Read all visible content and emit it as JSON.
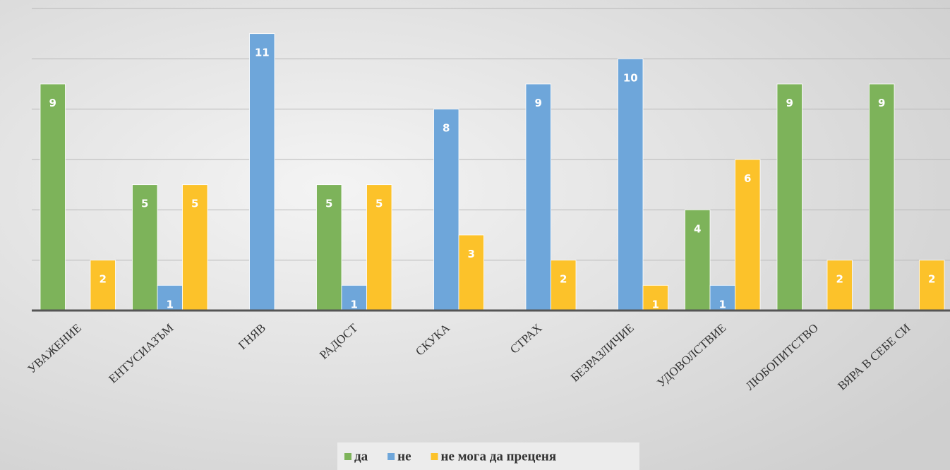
{
  "chart_data": {
    "type": "bar",
    "categories": [
      "УВАЖЕНИЕ",
      "ЕНТУСИАЗЪМ",
      "ГНЯВ",
      "РАДОСТ",
      "СКУКА",
      "СТРАХ",
      "БЕЗРАЗЛИЧИЕ",
      "УДОВОЛСТВИЕ",
      "ЛЮБОПИТСТВО",
      "ВЯРА В СЕБЕ СИ"
    ],
    "series": [
      {
        "name": "да",
        "color": "#7db35a",
        "values": [
          9,
          5,
          0,
          5,
          0,
          0,
          0,
          4,
          9,
          9
        ]
      },
      {
        "name": "не",
        "color": "#6ea6da",
        "values": [
          0,
          1,
          11,
          1,
          8,
          9,
          10,
          1,
          0,
          0
        ]
      },
      {
        "name": "не мога да преценя",
        "color": "#fcc22a",
        "values": [
          2,
          5,
          0,
          5,
          3,
          2,
          1,
          6,
          2,
          2
        ]
      }
    ],
    "ylim": [
      0,
      12
    ],
    "yticks": [
      0,
      2,
      4,
      6,
      8,
      10,
      12
    ],
    "grid": true
  }
}
